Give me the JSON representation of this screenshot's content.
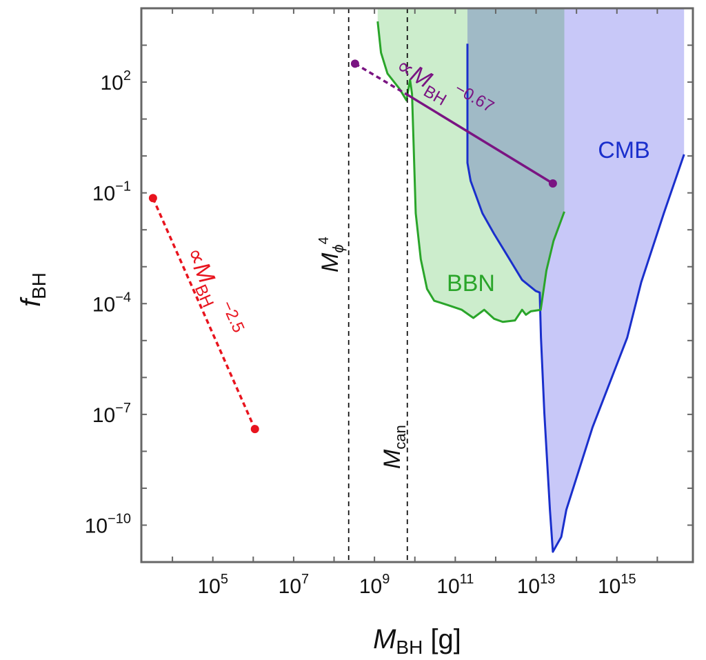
{
  "chart_data": {
    "type": "line",
    "x_scale": "log",
    "y_scale": "log",
    "xlim": [
      1700.0,
      7.6e+16
    ],
    "ylim": [
      1e-11,
      10000.0
    ],
    "grid": false,
    "xlabel": {
      "main": "M",
      "sub": "BH",
      "unit": " [g]"
    },
    "ylabel": {
      "main": "f",
      "sub": "BH"
    },
    "x_ticks": [
      {
        "base": "10",
        "exp": "5",
        "value": 100000.0
      },
      {
        "base": "10",
        "exp": "7",
        "value": 10000000.0
      },
      {
        "base": "10",
        "exp": "9",
        "value": 1000000000.0
      },
      {
        "base": "10",
        "exp": "11",
        "value": 100000000000.0
      },
      {
        "base": "10",
        "exp": "13",
        "value": 10000000000000.0
      },
      {
        "base": "10",
        "exp": "15",
        "value": 1000000000000000.0
      }
    ],
    "y_ticks": [
      {
        "base": "10",
        "exp": "2",
        "value": 100.0
      },
      {
        "base": "10",
        "exp": "−1",
        "value": 0.1
      },
      {
        "base": "10",
        "exp": "−4",
        "value": 0.0001
      },
      {
        "base": "10",
        "exp": "−7",
        "value": 1e-07
      },
      {
        "base": "10",
        "exp": "−10",
        "value": 1e-10
      }
    ],
    "regions": [
      {
        "name": "CMB",
        "label": "CMB",
        "line_color": "#1a2fcc",
        "fill_color": "#c8c8f8",
        "fill_x_range": [
          200000000000.0,
          4.6e+16
        ],
        "boundary": {
          "x": [
            200000000000.0,
            200000000000.0,
            240000000000.0,
            470000000000.0,
            910000000000.0,
            2000000000000.0,
            4500000000000.0,
            9800000000000.0,
            12300000000000.0,
            13200000000000.0,
            16000000000000.0,
            22000000000000.0,
            26000000000000.0,
            42000000000000.0,
            56000000000000.0,
            250000000000000.0,
            1800000000000000.0,
            4000000000000000.0,
            1.45e+16,
            4.6e+16
          ],
          "y": [
            1100.0,
            0.65,
            0.21,
            0.028,
            0.0078,
            0.0019,
            0.00044,
            0.00022,
            0.0002,
            1.2e-05,
            1.1e-07,
            2.6e-10,
            1.9e-11,
            4.8e-11,
            2.6e-10,
            4.5e-08,
            1.2e-05,
            0.00038,
            0.028,
            1.1
          ]
        }
      },
      {
        "name": "BBN",
        "label": "BBN",
        "line_color": "#2aa52a",
        "fill_color": "#ccedcc",
        "fill_x_range": [
          1200000000.0,
          50000000000000.0
        ],
        "boundary": {
          "x": [
            1200000000.0,
            1450000000.0,
            2100000000.0,
            4200000000.0,
            6200000000.0,
            7600000000.0,
            8500000000.0,
            9300000000.0,
            10500000000.0,
            14000000000.0,
            20000000000.0,
            30000000000.0,
            66000000000.0,
            145000000000.0,
            280000000000.0,
            520000000000.0,
            910000000000.0,
            1500000000000.0,
            3000000000000.0,
            4500000000000.0,
            5600000000000.0,
            7400000000000.0,
            13000000000000.0,
            18000000000000.0,
            27000000000000.0,
            50000000000000.0
          ],
          "y": [
            4400.0,
            630,
            170,
            65,
            32,
            115,
            48,
            2.1,
            0.028,
            0.0016,
            0.00025,
            0.00012,
            9.1e-05,
            6.8e-05,
            4.1e-05,
            6.8e-05,
            3.9e-05,
            3.2e-05,
            3.5e-05,
            6.8e-05,
            5e-05,
            6.2e-05,
            6.8e-05,
            0.00079,
            0.005,
            0.031
          ]
        }
      }
    ],
    "series": [
      {
        "color": "#e8141e",
        "label": {
          "prefix": "∝M",
          "sub": "BH",
          "sup": "−2.5"
        },
        "segments": [
          {
            "style": "dashed",
            "x": [
              3300.0,
              1100000.0
            ],
            "y": [
              0.072,
              4e-08
            ]
          }
        ],
        "markers": {
          "x": [
            3300.0,
            1100000.0
          ],
          "y": [
            0.072,
            4e-08
          ]
        }
      },
      {
        "color": "#7a1482",
        "label": {
          "prefix": "∝M",
          "sub": "BH",
          "sup": "−0.67"
        },
        "segments": [
          {
            "style": "dashed",
            "x": [
              330000000.0,
              7100000000.0
            ],
            "y": [
              316,
              43
            ]
          },
          {
            "style": "solid",
            "x": [
              7100000000.0,
              26000000000000.0
            ],
            "y": [
              43,
              0.18
            ]
          }
        ],
        "markers": {
          "x": [
            330000000.0,
            26000000000000.0
          ],
          "y": [
            316,
            0.18
          ]
        }
      }
    ],
    "vertical_lines": [
      {
        "x": 230000000.0,
        "style": "dashed",
        "color": "#111111",
        "label": {
          "main": "M",
          "sub": "ϕ",
          "sup": "4"
        }
      },
      {
        "x": 6500000000.0,
        "style": "dashed",
        "color": "#111111",
        "label": {
          "main": "M",
          "sub": "can"
        }
      }
    ]
  }
}
